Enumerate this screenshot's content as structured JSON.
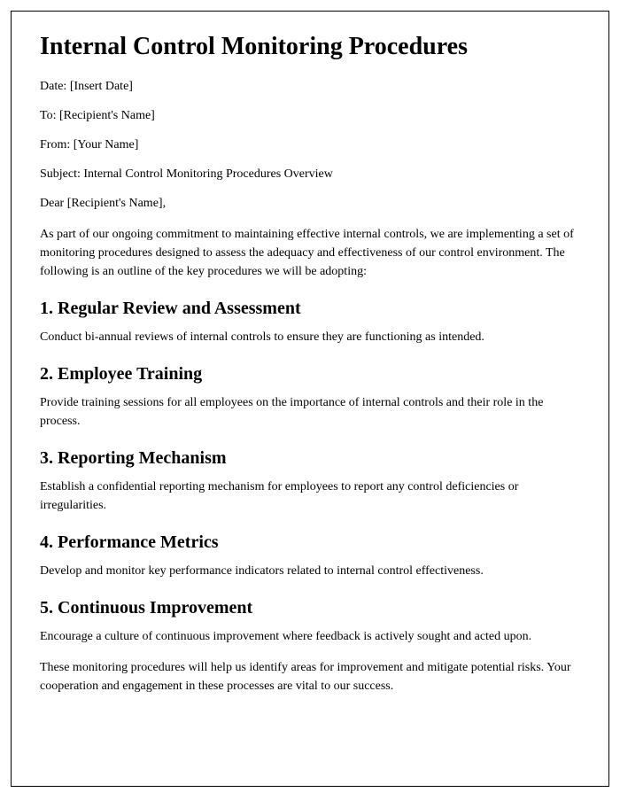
{
  "title": "Internal Control Monitoring Procedures",
  "meta": {
    "date": "Date: [Insert Date]",
    "to": "To: [Recipient's Name]",
    "from": "From: [Your Name]",
    "subject": "Subject: Internal Control Monitoring Procedures Overview"
  },
  "salutation": "Dear [Recipient's Name],",
  "intro": "As part of our ongoing commitment to maintaining effective internal controls, we are implementing a set of monitoring procedures designed to assess the adequacy and effectiveness of our control environment. The following is an outline of the key procedures we will be adopting:",
  "sections": {
    "s1": {
      "heading": "1. Regular Review and Assessment",
      "body": "Conduct bi-annual reviews of internal controls to ensure they are functioning as intended."
    },
    "s2": {
      "heading": "2. Employee Training",
      "body": "Provide training sessions for all employees on the importance of internal controls and their role in the process."
    },
    "s3": {
      "heading": "3. Reporting Mechanism",
      "body": "Establish a confidential reporting mechanism for employees to report any control deficiencies or irregularities."
    },
    "s4": {
      "heading": "4. Performance Metrics",
      "body": "Develop and monitor key performance indicators related to internal control effectiveness."
    },
    "s5": {
      "heading": "5. Continuous Improvement",
      "body": "Encourage a culture of continuous improvement where feedback is actively sought and acted upon."
    }
  },
  "closing": "These monitoring procedures will help us identify areas for improvement and mitigate potential risks. Your cooperation and engagement in these processes are vital to our success."
}
